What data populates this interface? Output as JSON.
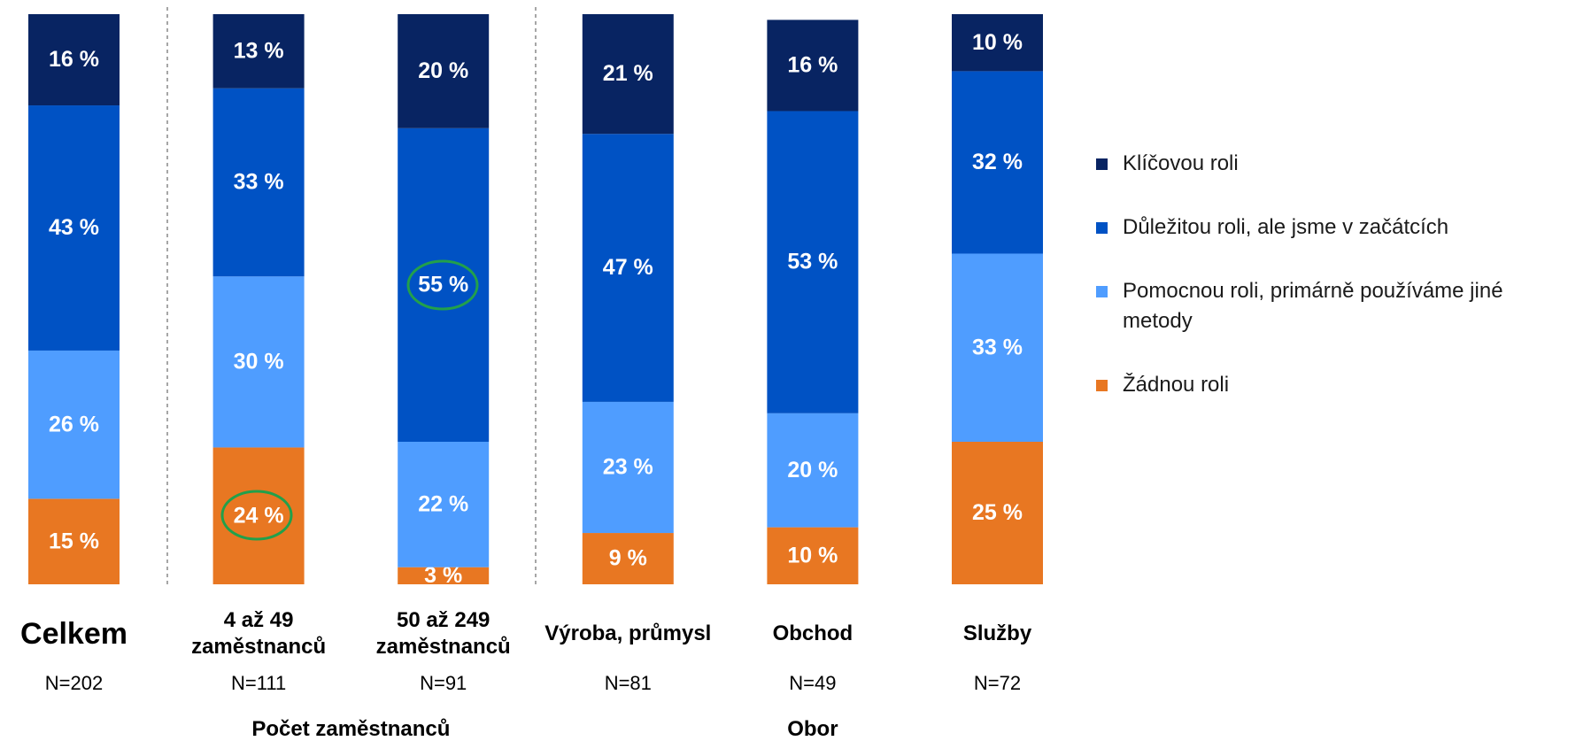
{
  "chart_data": {
    "type": "stacked_bar",
    "categories": [
      "Celkem",
      "4 až 49 zaměstnanců",
      "50 až 249 zaměstnanců",
      "Výroba, průmysl",
      "Obchod",
      "Služby"
    ],
    "n_labels": [
      "N=202",
      "N=111",
      "N=91",
      "N=81",
      "N=49",
      "N=72"
    ],
    "groups": [
      {
        "label": "Počet zaměstnanců"
      },
      {
        "label": "Obor"
      }
    ],
    "ylim": [
      0,
      100
    ],
    "series": [
      {
        "name": "Žádnou roli",
        "color": "#e87722",
        "values": [
          15,
          24,
          3,
          9,
          10,
          25
        ],
        "value_labels": [
          "15 %",
          "24 %",
          "3 %",
          "9 %",
          "10 %",
          "25 %"
        ]
      },
      {
        "name": "Pomocnou roli, primárně používáme jiné metody",
        "color": "#4f9dff",
        "values": [
          26,
          30,
          22,
          23,
          20,
          33
        ],
        "value_labels": [
          "26 %",
          "30 %",
          "22 %",
          "23 %",
          "20 %",
          "33 %"
        ]
      },
      {
        "name": "Důležitou roli, ale jsme v začátcích",
        "color": "#0052c4",
        "values": [
          43,
          33,
          55,
          47,
          53,
          32
        ],
        "value_labels": [
          "43 %",
          "33 %",
          "55 %",
          "47 %",
          "53 %",
          "32 %"
        ]
      },
      {
        "name": "Klíčovou roli",
        "color": "#082462",
        "values": [
          16,
          13,
          20,
          21,
          16,
          10
        ],
        "value_labels": [
          "16 %",
          "13 %",
          "20 %",
          "21 %",
          "16 %",
          "10 %"
        ]
      }
    ]
  }
}
